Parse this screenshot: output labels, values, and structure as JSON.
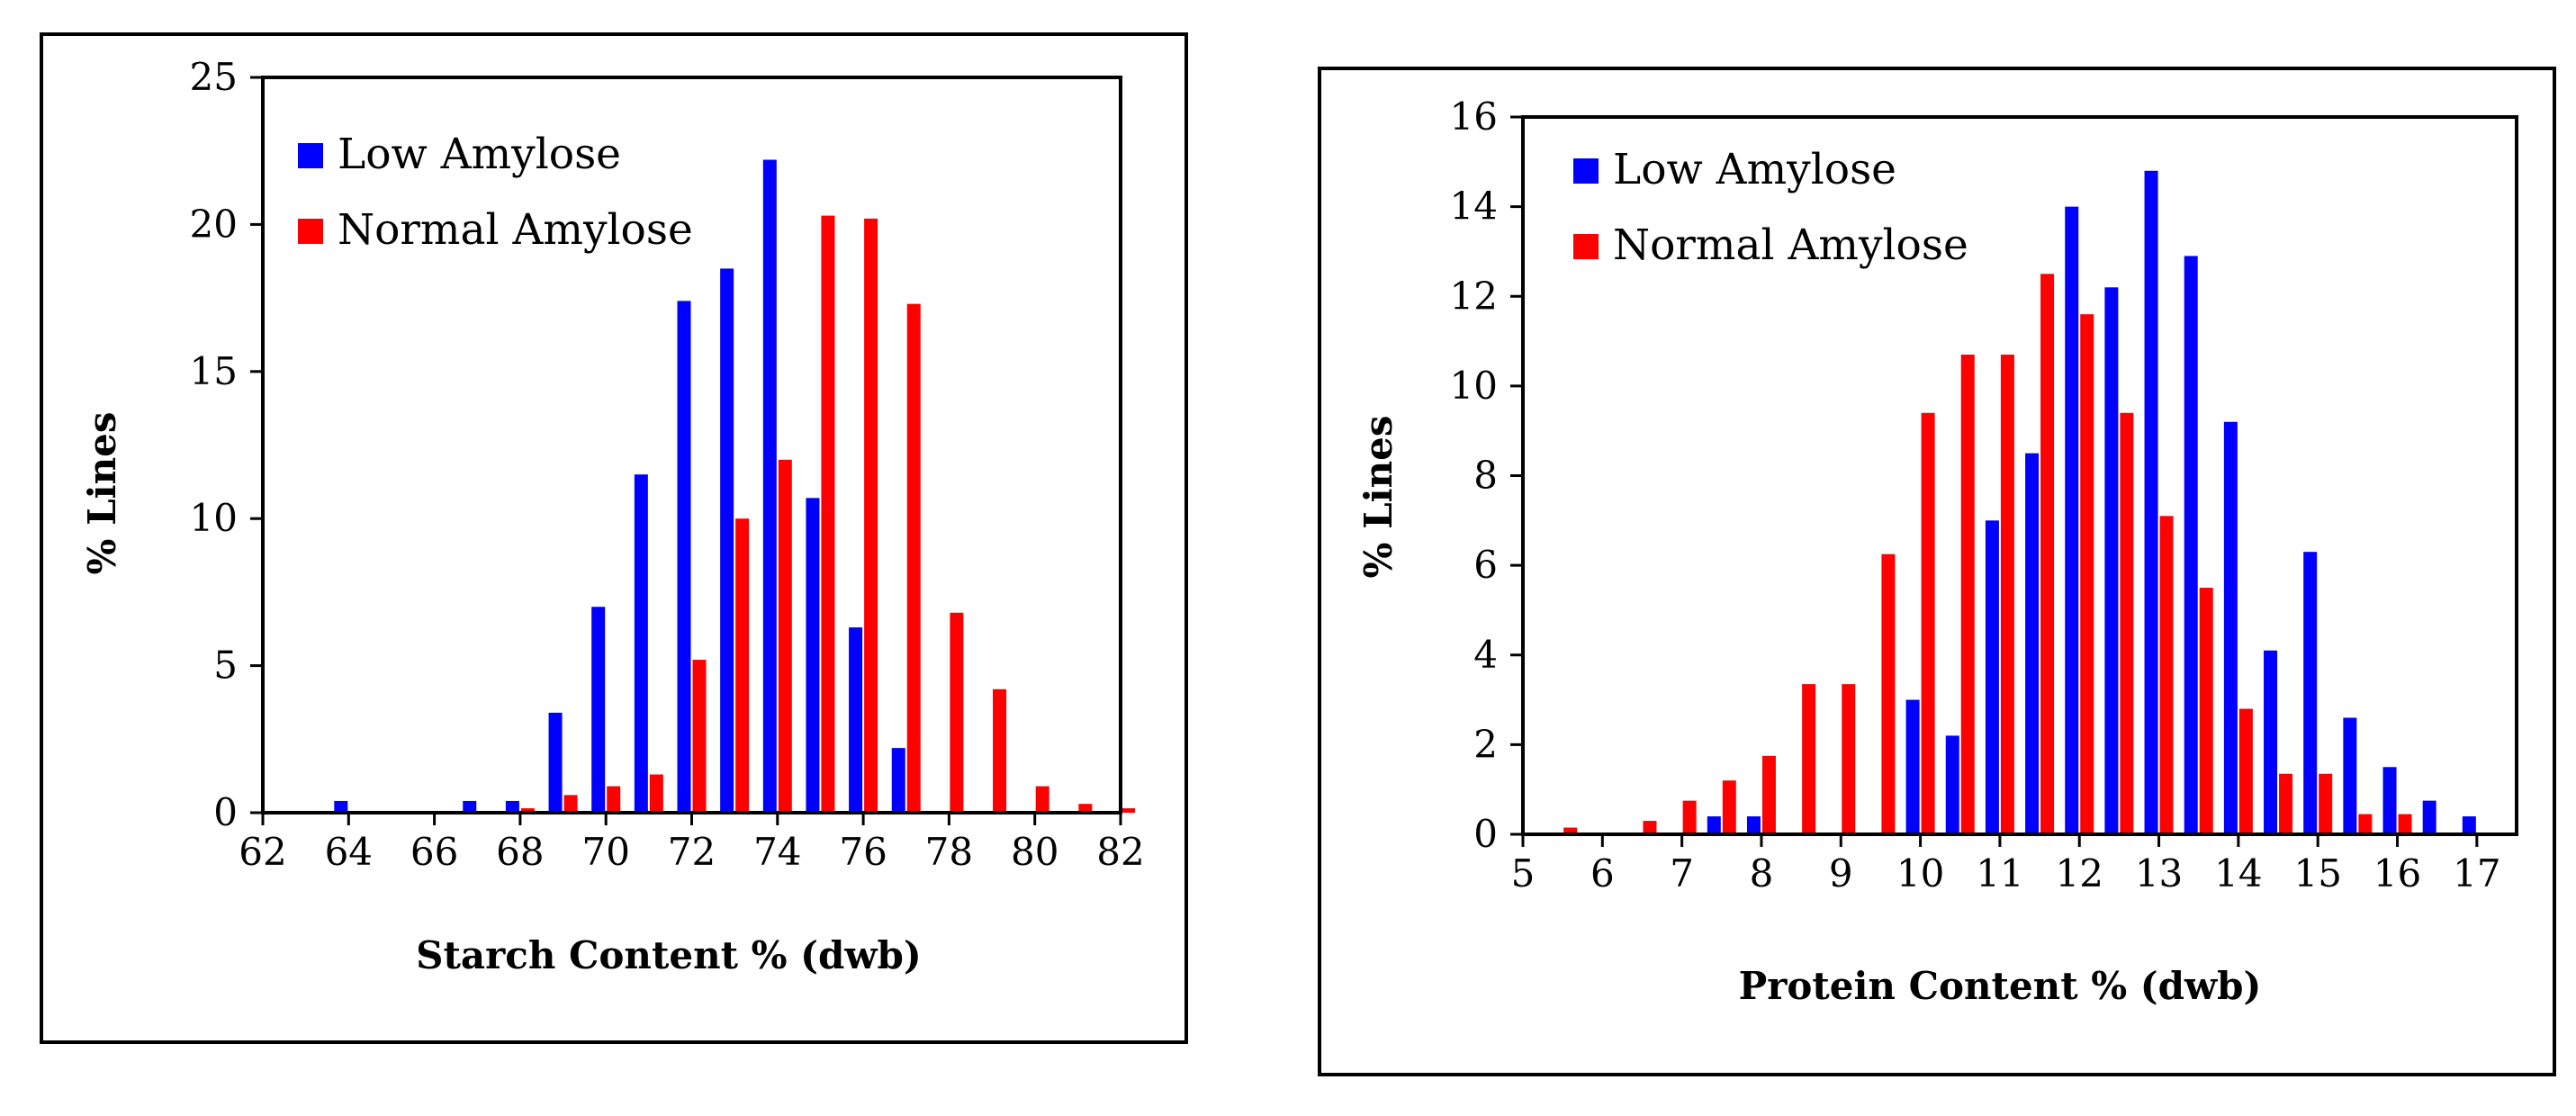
{
  "colors": {
    "low": "#0000ff",
    "normal": "#ff0000",
    "axis": "#000000"
  },
  "chart_data": [
    {
      "type": "bar",
      "title": "",
      "xlabel": "Starch Content % (dwb)",
      "ylabel": "% Lines",
      "xlim": [
        62,
        82
      ],
      "ylim": [
        0,
        25
      ],
      "xticks": [
        "62",
        "64",
        "66",
        "68",
        "70",
        "72",
        "74",
        "76",
        "78",
        "80",
        "82"
      ],
      "yticks": [
        "0",
        "5",
        "10",
        "15",
        "20",
        "25"
      ],
      "legend_position": "top-left",
      "grid": false,
      "series": [
        {
          "name": "Low Amylose",
          "color_key": "low",
          "x": [
            64,
            65,
            66,
            67,
            68,
            69,
            70,
            71,
            72,
            73,
            74,
            75,
            76,
            77,
            78,
            79,
            80,
            81,
            82
          ],
          "values": [
            0.4,
            0,
            0,
            0.4,
            0.4,
            3.4,
            7.0,
            11.5,
            17.4,
            18.5,
            22.2,
            10.7,
            6.3,
            2.2,
            0,
            0,
            0,
            0,
            0
          ]
        },
        {
          "name": "Normal Amylose",
          "color_key": "normal",
          "x": [
            64,
            65,
            66,
            67,
            68,
            69,
            70,
            71,
            72,
            73,
            74,
            75,
            76,
            77,
            78,
            79,
            80,
            81,
            82
          ],
          "values": [
            0,
            0,
            0,
            0,
            0.15,
            0.6,
            0.9,
            1.3,
            5.2,
            10.0,
            12.0,
            20.3,
            20.2,
            17.3,
            6.8,
            4.2,
            0.9,
            0.3,
            0.15
          ]
        }
      ]
    },
    {
      "type": "bar",
      "title": "",
      "xlabel": "Protein Content % (dwb)",
      "ylabel": "% Lines",
      "xlim": [
        5,
        17.5
      ],
      "ylim": [
        0,
        16
      ],
      "xticks": [
        "5",
        "6",
        "7",
        "8",
        "9",
        "10",
        "11",
        "12",
        "13",
        "14",
        "15",
        "16",
        "17"
      ],
      "yticks": [
        "0",
        "2",
        "4",
        "6",
        "8",
        "10",
        "12",
        "14",
        "16"
      ],
      "legend_position": "top-left",
      "grid": false,
      "series": [
        {
          "name": "Low Amylose",
          "color_key": "low",
          "x": [
            5.5,
            6,
            6.5,
            7,
            7.5,
            8,
            8.5,
            9,
            9.5,
            10,
            10.5,
            11,
            11.5,
            12,
            12.5,
            13,
            13.5,
            14,
            14.5,
            15,
            15.5,
            16,
            16.5,
            17
          ],
          "values": [
            0,
            0,
            0,
            0,
            0.4,
            0.4,
            0,
            0,
            0,
            3.0,
            2.2,
            7.0,
            8.5,
            14.0,
            12.2,
            14.8,
            12.9,
            9.2,
            4.1,
            6.3,
            2.6,
            1.5,
            0.75,
            0.4
          ]
        },
        {
          "name": "Normal Amylose",
          "color_key": "normal",
          "x": [
            5.5,
            6,
            6.5,
            7,
            7.5,
            8,
            8.5,
            9,
            9.5,
            10,
            10.5,
            11,
            11.5,
            12,
            12.5,
            13,
            13.5,
            14,
            14.5,
            15,
            15.5,
            16,
            16.5,
            17
          ],
          "values": [
            0.15,
            0,
            0.3,
            0.75,
            1.2,
            1.75,
            3.35,
            3.35,
            6.25,
            9.4,
            10.7,
            10.7,
            12.5,
            11.6,
            9.4,
            7.1,
            5.5,
            2.8,
            1.35,
            1.35,
            0.45,
            0.45,
            0,
            0
          ]
        }
      ]
    }
  ]
}
